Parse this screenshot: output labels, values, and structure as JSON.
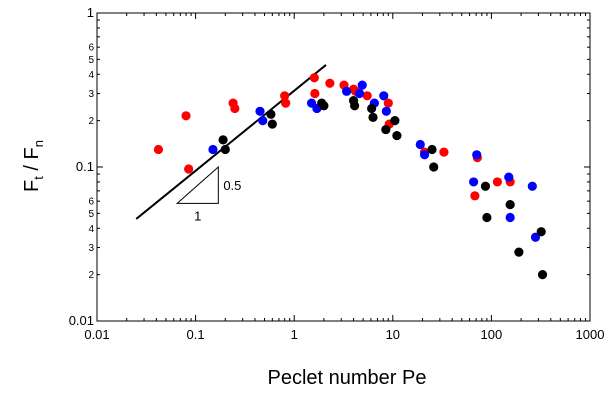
{
  "chart_data": {
    "type": "scatter",
    "xscale": "log",
    "yscale": "log",
    "xlim": [
      0.01,
      1000
    ],
    "ylim": [
      0.01,
      1
    ],
    "xlabel": "Peclet number Pe",
    "ylabel_parts": {
      "f": "F",
      "t": "t",
      "sep": " / ",
      "fn": "F",
      "n": "n"
    },
    "x_major_ticks": [
      {
        "v": 0.01,
        "label": "0.01"
      },
      {
        "v": 0.1,
        "label": "0.1"
      },
      {
        "v": 1,
        "label": "1"
      },
      {
        "v": 10,
        "label": "10"
      },
      {
        "v": 100,
        "label": "100"
      },
      {
        "v": 1000,
        "label": "1000"
      }
    ],
    "y_major_ticks": [
      {
        "v": 0.01,
        "label": "0.01"
      },
      {
        "v": 0.1,
        "label": "0.1"
      },
      {
        "v": 1,
        "label": "1"
      }
    ],
    "y_minor_labels": [
      {
        "v": 0.02,
        "label": "2"
      },
      {
        "v": 0.03,
        "label": "3"
      },
      {
        "v": 0.04,
        "label": "4"
      },
      {
        "v": 0.05,
        "label": "5"
      },
      {
        "v": 0.06,
        "label": "6"
      },
      {
        "v": 0.2,
        "label": "2"
      },
      {
        "v": 0.3,
        "label": "3"
      },
      {
        "v": 0.4,
        "label": "4"
      },
      {
        "v": 0.5,
        "label": "5"
      },
      {
        "v": 0.6,
        "label": "6"
      }
    ],
    "series": [
      {
        "color": "#ff0000",
        "points": [
          [
            0.042,
            0.13
          ],
          [
            0.08,
            0.215
          ],
          [
            0.085,
            0.097
          ],
          [
            0.24,
            0.26
          ],
          [
            0.25,
            0.24
          ],
          [
            0.8,
            0.29
          ],
          [
            0.82,
            0.26
          ],
          [
            1.6,
            0.38
          ],
          [
            1.62,
            0.3
          ],
          [
            2.3,
            0.35
          ],
          [
            3.2,
            0.34
          ],
          [
            4.0,
            0.32
          ],
          [
            4.2,
            0.31
          ],
          [
            5.5,
            0.29
          ],
          [
            9.0,
            0.26
          ],
          [
            9.2,
            0.19
          ],
          [
            21,
            0.125
          ],
          [
            33,
            0.125
          ],
          [
            68,
            0.065
          ],
          [
            72,
            0.115
          ],
          [
            115,
            0.08
          ],
          [
            155,
            0.08
          ]
        ]
      },
      {
        "color": "#0000ff",
        "points": [
          [
            0.15,
            0.13
          ],
          [
            0.45,
            0.23
          ],
          [
            0.48,
            0.2
          ],
          [
            1.5,
            0.26
          ],
          [
            1.7,
            0.24
          ],
          [
            3.4,
            0.31
          ],
          [
            4.6,
            0.3
          ],
          [
            4.9,
            0.34
          ],
          [
            6.5,
            0.26
          ],
          [
            8.1,
            0.29
          ],
          [
            8.6,
            0.23
          ],
          [
            19,
            0.14
          ],
          [
            21,
            0.12
          ],
          [
            66,
            0.08
          ],
          [
            71,
            0.12
          ],
          [
            150,
            0.086
          ],
          [
            155,
            0.047
          ],
          [
            260,
            0.075
          ],
          [
            280,
            0.035
          ]
        ]
      },
      {
        "color": "#000000",
        "points": [
          [
            0.19,
            0.15
          ],
          [
            0.2,
            0.13
          ],
          [
            0.58,
            0.22
          ],
          [
            0.6,
            0.19
          ],
          [
            1.9,
            0.26
          ],
          [
            2.0,
            0.25
          ],
          [
            4.0,
            0.27
          ],
          [
            4.1,
            0.25
          ],
          [
            6.1,
            0.24
          ],
          [
            6.3,
            0.21
          ],
          [
            8.5,
            0.175
          ],
          [
            10.5,
            0.2
          ],
          [
            11,
            0.16
          ],
          [
            25,
            0.13
          ],
          [
            26,
            0.1
          ],
          [
            87,
            0.075
          ],
          [
            90,
            0.047
          ],
          [
            155,
            0.057
          ],
          [
            190,
            0.028
          ],
          [
            320,
            0.038
          ],
          [
            330,
            0.02
          ]
        ]
      }
    ],
    "fit_line": {
      "x": [
        0.025,
        2.1
      ],
      "y": [
        0.046,
        0.46
      ]
    },
    "slope_triangle": {
      "corner_left": [
        0.065,
        0.058
      ],
      "corner_right": [
        0.17,
        0.058
      ],
      "corner_top": [
        0.17,
        0.1
      ],
      "label_rise": "0.5",
      "label_run": "1"
    }
  }
}
